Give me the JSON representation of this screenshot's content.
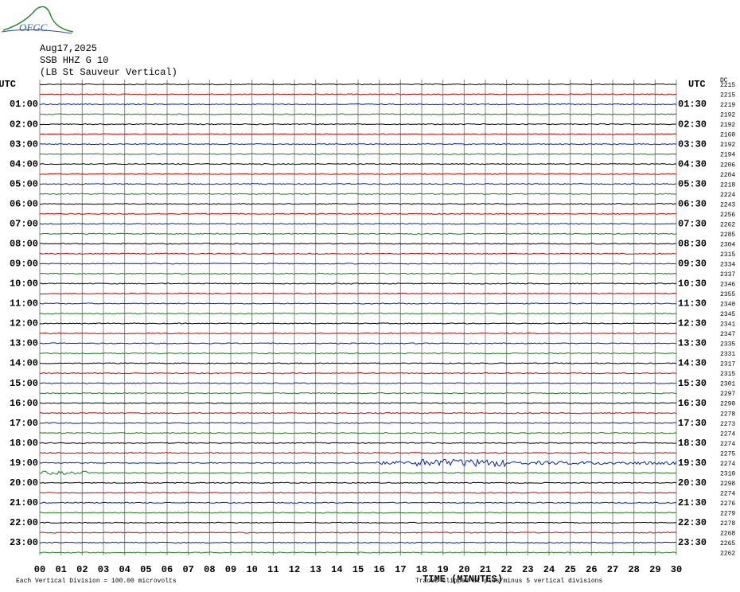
{
  "logo": {
    "text": "OFGC"
  },
  "header": {
    "date": "Aug17,2025",
    "station": "SSB HHZ G 10",
    "location": "(LB St Sauveur Vertical)"
  },
  "left_labels": [
    "UTC",
    "01:00",
    "02:00",
    "03:00",
    "04:00",
    "05:00",
    "06:00",
    "07:00",
    "08:00",
    "09:00",
    "10:00",
    "11:00",
    "12:00",
    "13:00",
    "14:00",
    "15:00",
    "16:00",
    "17:00",
    "18:00",
    "19:00",
    "20:00",
    "21:00",
    "22:00",
    "23:00"
  ],
  "right_labels": [
    "UTC",
    "01:30",
    "02:30",
    "03:30",
    "04:30",
    "05:30",
    "06:30",
    "07:30",
    "08:30",
    "09:30",
    "10:30",
    "11:30",
    "12:30",
    "13:30",
    "14:30",
    "15:30",
    "16:30",
    "17:30",
    "18:30",
    "19:30",
    "20:30",
    "21:30",
    "22:30",
    "23:30"
  ],
  "dc_label": "DC",
  "dc_values": [
    2215,
    2215,
    2219,
    2192,
    2192,
    2160,
    2192,
    2194,
    2206,
    2204,
    2218,
    2224,
    2243,
    2256,
    2262,
    2285,
    2304,
    2315,
    2334,
    2337,
    2346,
    2355,
    2340,
    2345,
    2341,
    2347,
    2335,
    2331,
    2317,
    2315,
    2301,
    2297,
    2290,
    2278,
    2273,
    2274,
    2274,
    2275,
    2274,
    2310,
    2298,
    2274,
    2276,
    2279,
    2278,
    2268,
    2265,
    2262
  ],
  "x_labels": [
    "00",
    "01",
    "02",
    "03",
    "04",
    "05",
    "06",
    "07",
    "08",
    "09",
    "10",
    "11",
    "12",
    "13",
    "14",
    "15",
    "16",
    "17",
    "18",
    "19",
    "20",
    "21",
    "22",
    "23",
    "24",
    "25",
    "26",
    "27",
    "28",
    "29",
    "30"
  ],
  "x_title": "TIME (MINUTES)",
  "footer_left": "Each Vertical Division =  100.00 microvolts",
  "footer_right": "Traces clipped at plus/minus 5 vertical divisions"
}
